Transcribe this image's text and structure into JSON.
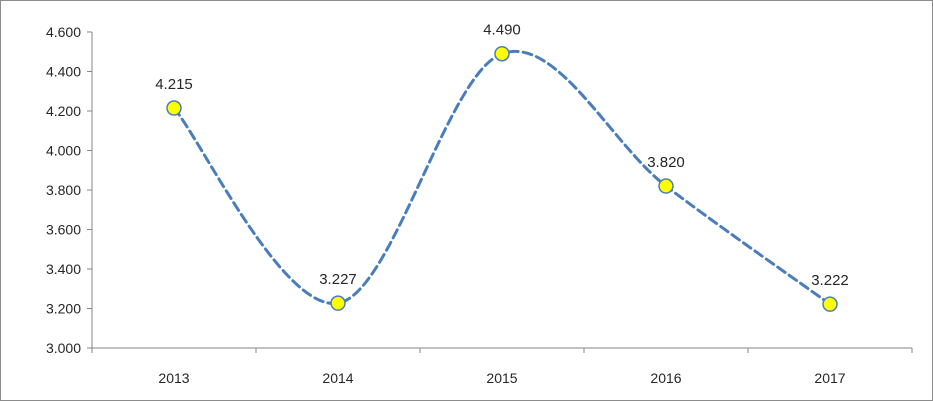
{
  "chart_data": {
    "type": "line",
    "title": "",
    "xlabel": "",
    "ylabel": "",
    "categories": [
      "2013",
      "2014",
      "2015",
      "2016",
      "2017"
    ],
    "series": [
      {
        "values": [
          4.215,
          3.227,
          4.49,
          3.82,
          3.222
        ],
        "data_labels": [
          "4.215",
          "3.227",
          "4.490",
          "3.820",
          "3.222"
        ]
      }
    ],
    "ylim": [
      3.0,
      4.6
    ],
    "y_ticks": [
      3.0,
      3.2,
      3.4,
      3.6,
      3.8,
      4.0,
      4.2,
      4.4,
      4.6
    ],
    "y_tick_labels": [
      "3.000",
      "3.200",
      "3.400",
      "3.600",
      "3.800",
      "4.000",
      "4.200",
      "4.400",
      "4.600"
    ],
    "line_style": "dashed smoothed",
    "grid": false,
    "legend": "none",
    "colors": {
      "line": "#4a7ebb",
      "marker_fill": "#ffff00",
      "marker_edge": "#4a7ebb",
      "axis": "#868686",
      "text": "#262626"
    }
  }
}
